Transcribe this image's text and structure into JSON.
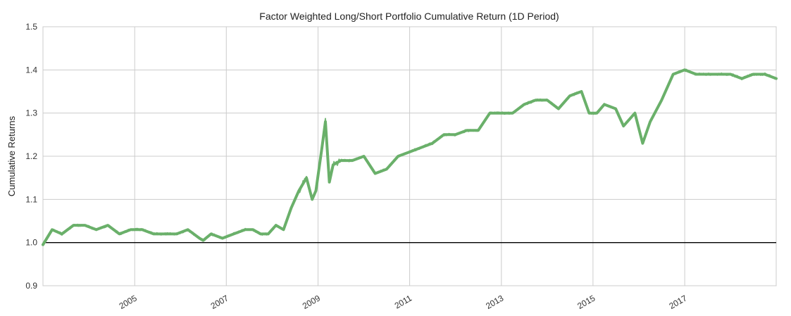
{
  "chart_data": {
    "type": "line",
    "title": "Factor Weighted Long/Short Portfolio Cumulative Return (1D Period)",
    "xlabel": "",
    "ylabel": "Cumulative Returns",
    "xlim": [
      "2003-01-01",
      "2018-12-31"
    ],
    "ylim": [
      0.9,
      1.5
    ],
    "y_ticks": [
      "0.9",
      "1.0",
      "1.1",
      "1.2",
      "1.3",
      "1.4",
      "1.5"
    ],
    "x_ticks": [
      "2005",
      "2007",
      "2009",
      "2011",
      "2013",
      "2015",
      "2017"
    ],
    "x_tick_dates": [
      "2005-01-01",
      "2007-01-01",
      "2009-01-01",
      "2011-01-01",
      "2013-01-01",
      "2015-01-01",
      "2017-01-01"
    ],
    "reference_line": 1.0,
    "grid": true,
    "legend": "none",
    "line_color": "#6ab06a",
    "reference_color": "#000000",
    "series": [
      {
        "x": [
          "2003-01-01",
          "2003-03-15",
          "2003-06-01",
          "2003-09-01",
          "2003-12-01",
          "2004-03-01",
          "2004-06-01",
          "2004-09-01",
          "2004-12-01",
          "2005-03-01",
          "2005-06-01",
          "2005-09-01",
          "2005-12-01",
          "2006-03-01",
          "2006-06-01",
          "2006-07-01",
          "2006-09-01",
          "2006-12-01",
          "2007-03-01",
          "2007-06-01",
          "2007-08-01",
          "2007-10-01",
          "2007-12-01",
          "2008-02-01",
          "2008-04-01",
          "2008-06-01",
          "2008-08-01",
          "2008-10-01",
          "2008-11-15",
          "2008-12-15",
          "2009-02-01",
          "2009-03-01",
          "2009-04-01",
          "2009-05-01",
          "2009-07-01",
          "2009-10-01",
          "2010-01-01",
          "2010-04-01",
          "2010-07-01",
          "2010-10-01",
          "2011-01-01",
          "2011-04-01",
          "2011-07-01",
          "2011-10-01",
          "2012-01-01",
          "2012-04-01",
          "2012-07-01",
          "2012-10-01",
          "2013-01-01",
          "2013-04-01",
          "2013-07-01",
          "2013-10-01",
          "2014-01-01",
          "2014-04-01",
          "2014-07-01",
          "2014-10-01",
          "2014-12-01",
          "2015-02-01",
          "2015-04-01",
          "2015-07-01",
          "2015-09-01",
          "2015-12-01",
          "2016-02-01",
          "2016-04-01",
          "2016-07-01",
          "2016-10-01",
          "2017-01-01",
          "2017-04-01",
          "2017-07-01",
          "2017-10-01",
          "2018-01-01",
          "2018-04-01",
          "2018-07-01",
          "2018-10-01",
          "2018-12-31"
        ],
        "y": [
          0.995,
          1.03,
          1.02,
          1.04,
          1.04,
          1.03,
          1.04,
          1.02,
          1.03,
          1.03,
          1.02,
          1.02,
          1.02,
          1.03,
          1.01,
          1.005,
          1.02,
          1.01,
          1.02,
          1.03,
          1.03,
          1.02,
          1.02,
          1.04,
          1.03,
          1.08,
          1.12,
          1.15,
          1.1,
          1.12,
          1.22,
          1.28,
          1.14,
          1.18,
          1.19,
          1.19,
          1.2,
          1.16,
          1.17,
          1.2,
          1.21,
          1.22,
          1.23,
          1.25,
          1.25,
          1.26,
          1.26,
          1.3,
          1.3,
          1.3,
          1.32,
          1.33,
          1.33,
          1.31,
          1.34,
          1.35,
          1.3,
          1.3,
          1.32,
          1.31,
          1.27,
          1.3,
          1.23,
          1.28,
          1.33,
          1.39,
          1.4,
          1.39,
          1.39,
          1.39,
          1.39,
          1.38,
          1.39,
          1.39,
          1.38
        ]
      }
    ]
  }
}
